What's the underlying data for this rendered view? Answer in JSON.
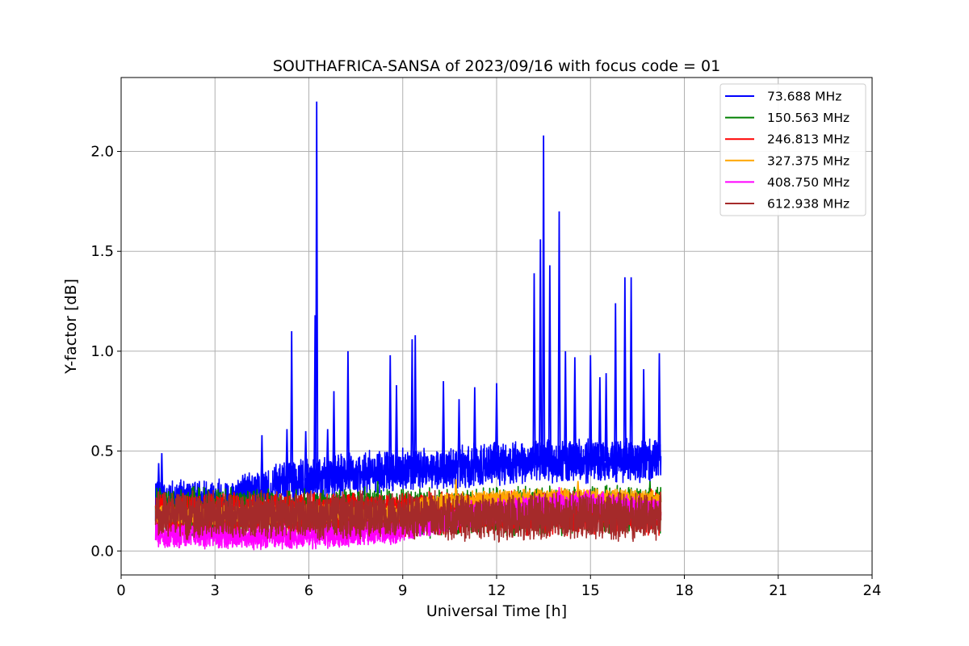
{
  "chart_data": {
    "type": "line",
    "title": "SOUTHAFRICA-SANSA of 2023/09/16 with focus code = 01",
    "xlabel": "Universal Time [h]",
    "ylabel": "Y-factor [dB]",
    "xlim": [
      0,
      24
    ],
    "ylim": [
      -0.12,
      2.37
    ],
    "xticks": [
      0,
      3,
      6,
      9,
      12,
      15,
      18,
      21,
      24
    ],
    "xtick_labels": [
      "0",
      "3",
      "6",
      "9",
      "12",
      "15",
      "18",
      "21",
      "24"
    ],
    "yticks": [
      0.0,
      0.5,
      1.0,
      1.5,
      2.0
    ],
    "ytick_labels": [
      "0.0",
      "0.5",
      "1.0",
      "1.5",
      "2.0"
    ],
    "grid": true,
    "legend_position": "top-right",
    "x_range_data": [
      1.1,
      17.25
    ],
    "series": [
      {
        "name": "  73.688 MHz",
        "color": "#0000ff",
        "baseline": [
          [
            1.1,
            0.24
          ],
          [
            3.5,
            0.26
          ],
          [
            5.0,
            0.33
          ],
          [
            7.0,
            0.38
          ],
          [
            9.0,
            0.4
          ],
          [
            11.0,
            0.42
          ],
          [
            13.0,
            0.45
          ],
          [
            15.0,
            0.45
          ],
          [
            17.25,
            0.45
          ]
        ],
        "noise": 0.12,
        "spikes": [
          [
            1.2,
            0.44
          ],
          [
            1.3,
            0.49
          ],
          [
            4.5,
            0.58
          ],
          [
            5.3,
            0.61
          ],
          [
            5.45,
            1.1
          ],
          [
            5.9,
            0.6
          ],
          [
            6.2,
            1.18
          ],
          [
            6.25,
            2.25
          ],
          [
            6.6,
            0.61
          ],
          [
            6.8,
            0.8
          ],
          [
            7.25,
            1.0
          ],
          [
            8.6,
            0.98
          ],
          [
            8.8,
            0.83
          ],
          [
            9.3,
            1.06
          ],
          [
            9.4,
            1.08
          ],
          [
            10.3,
            0.85
          ],
          [
            10.8,
            0.76
          ],
          [
            11.3,
            0.82
          ],
          [
            12.0,
            0.84
          ],
          [
            13.2,
            1.39
          ],
          [
            13.4,
            1.56
          ],
          [
            13.5,
            2.08
          ],
          [
            13.7,
            1.43
          ],
          [
            14.0,
            1.7
          ],
          [
            14.2,
            1.0
          ],
          [
            14.5,
            0.97
          ],
          [
            15.0,
            0.98
          ],
          [
            15.3,
            0.87
          ],
          [
            15.5,
            0.89
          ],
          [
            15.8,
            1.24
          ],
          [
            16.1,
            1.37
          ],
          [
            16.3,
            1.37
          ],
          [
            16.7,
            0.91
          ],
          [
            17.2,
            0.99
          ]
        ]
      },
      {
        "name": "150.563 MHz",
        "color": "#008000",
        "baseline": [
          [
            1.1,
            0.2
          ],
          [
            9.0,
            0.19
          ],
          [
            17.25,
            0.21
          ]
        ],
        "noise": 0.13,
        "spikes": [
          [
            2.3,
            0.32
          ],
          [
            8.2,
            0.35
          ],
          [
            16.9,
            0.35
          ]
        ]
      },
      {
        "name": "246.813 MHz",
        "color": "#ff0000",
        "baseline": [
          [
            1.1,
            0.18
          ],
          [
            9.0,
            0.18
          ],
          [
            17.25,
            0.19
          ]
        ],
        "noise": 0.12,
        "spikes": []
      },
      {
        "name": "327.375 MHz",
        "color": "#ffa500",
        "baseline": [
          [
            1.1,
            0.18
          ],
          [
            9.0,
            0.19
          ],
          [
            10.0,
            0.24
          ],
          [
            12.0,
            0.26
          ],
          [
            14.0,
            0.27
          ],
          [
            17.25,
            0.26
          ]
        ],
        "noise": 0.05,
        "spikes": [
          [
            10.7,
            0.36
          ],
          [
            14.6,
            0.35
          ]
        ]
      },
      {
        "name": "408.750 MHz",
        "color": "#ff00ff",
        "baseline": [
          [
            1.1,
            0.08
          ],
          [
            6.0,
            0.07
          ],
          [
            9.0,
            0.1
          ],
          [
            11.0,
            0.18
          ],
          [
            13.0,
            0.22
          ],
          [
            15.0,
            0.24
          ],
          [
            17.25,
            0.2
          ]
        ],
        "noise": 0.07,
        "spikes": [
          [
            14.0,
            0.32
          ]
        ]
      },
      {
        "name": "612.938 MHz",
        "color": "#a52a2a",
        "baseline": [
          [
            1.1,
            0.18
          ],
          [
            17.25,
            0.17
          ]
        ],
        "noise": 0.13,
        "spikes": []
      }
    ]
  }
}
